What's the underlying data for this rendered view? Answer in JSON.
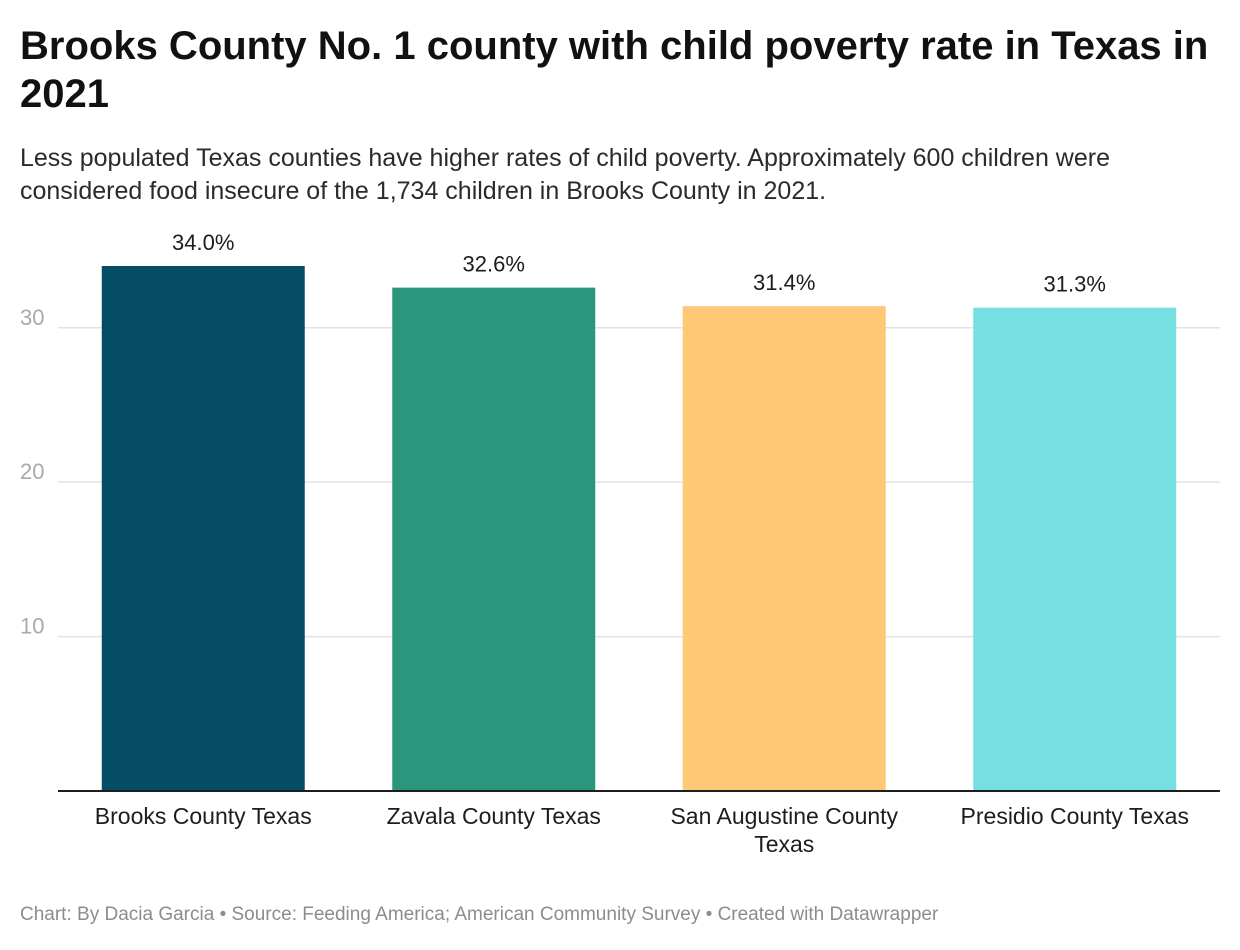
{
  "title": "Brooks County No. 1 county with child poverty rate in Texas in 2021",
  "subtitle": "Less populated Texas counties have higher rates of child poverty. Approximately 600 children were considered food insecure of the 1,734 children in Brooks County in 2021.",
  "footer": "Chart: By Dacia Garcia • Source: Feeding America; American Community Survey • Created with Datawrapper",
  "chart_data": {
    "type": "bar",
    "categories": [
      [
        "Brooks County Texas"
      ],
      [
        "Zavala County Texas"
      ],
      [
        "San Augustine County",
        "Texas"
      ],
      [
        "Presidio County Texas"
      ]
    ],
    "values": [
      34.0,
      32.6,
      31.4,
      31.3
    ],
    "value_labels": [
      "34.0%",
      "32.6%",
      "31.4%",
      "31.3%"
    ],
    "colors": [
      "#054d65",
      "#2a967c",
      "#fec877",
      "#76dfe2"
    ],
    "yticks": [
      10,
      20,
      30
    ],
    "ylim": [
      0,
      34
    ],
    "grid": true,
    "legend": "none"
  }
}
